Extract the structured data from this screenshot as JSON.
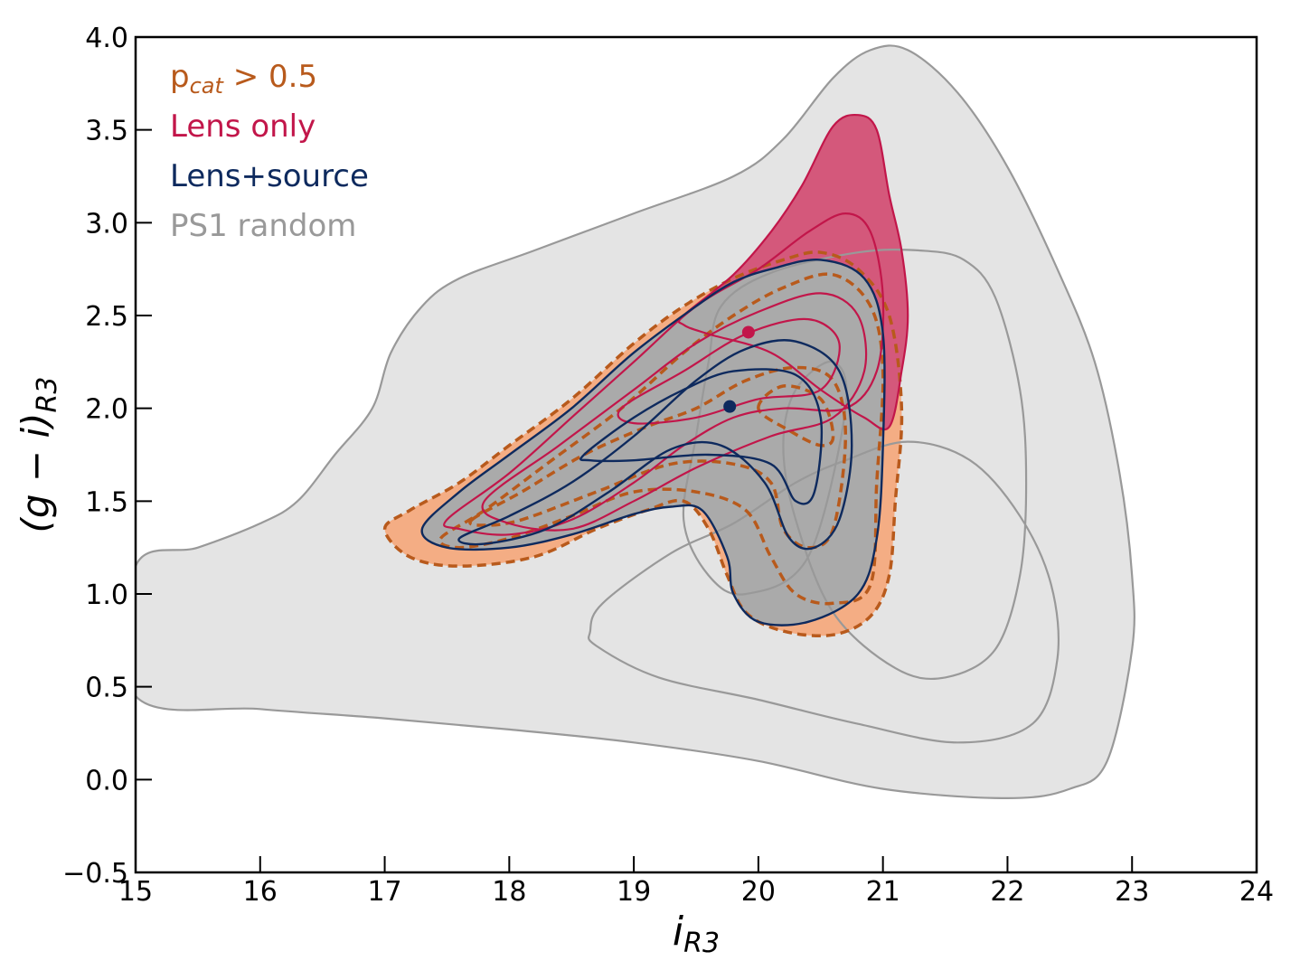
{
  "chart_data": {
    "type": "contour",
    "xlabel": "i",
    "xlabel_sub": "R3",
    "ylabel": "(g − i)",
    "ylabel_sub": "R3",
    "xlim": [
      15,
      24
    ],
    "ylim": [
      -0.5,
      4.0
    ],
    "xticks": [
      15,
      16,
      17,
      18,
      19,
      20,
      21,
      22,
      23,
      24
    ],
    "yticks": [
      -0.5,
      0.0,
      0.5,
      1.0,
      1.5,
      2.0,
      2.5,
      3.0,
      3.5,
      4.0
    ],
    "x_tick_labels": [
      "15",
      "16",
      "17",
      "18",
      "19",
      "20",
      "21",
      "22",
      "23",
      "24"
    ],
    "y_tick_labels": [
      "−0.5",
      "0.0",
      "0.5",
      "1.0",
      "1.5",
      "2.0",
      "2.5",
      "3.0",
      "3.5",
      "4.0"
    ],
    "legend": {
      "placement": "top-left",
      "entries": [
        {
          "key": "pcat",
          "text": "p",
          "sub": "cat",
          "suffix": " > 0.5",
          "color": "#b85a1c"
        },
        {
          "key": "lens",
          "text": "Lens only",
          "color": "#c2164a"
        },
        {
          "key": "lenssrc",
          "text": "Lens+source",
          "color": "#0e2a5e"
        },
        {
          "key": "ps1",
          "text": "PS1 random",
          "color": "#999999"
        }
      ]
    },
    "series": [
      {
        "key": "ps1",
        "color": "#999999",
        "fill": "#e4e4e4",
        "contours": [
          [
            [
              15.0,
              1.15
            ],
            [
              15.5,
              1.25
            ],
            [
              16.0,
              1.38
            ],
            [
              16.3,
              1.5
            ],
            [
              16.6,
              1.75
            ],
            [
              16.9,
              2.0
            ],
            [
              17.05,
              2.3
            ],
            [
              17.3,
              2.55
            ],
            [
              17.6,
              2.7
            ],
            [
              18.2,
              2.85
            ],
            [
              19.0,
              3.05
            ],
            [
              19.8,
              3.25
            ],
            [
              20.2,
              3.45
            ],
            [
              20.6,
              3.78
            ],
            [
              20.9,
              3.93
            ],
            [
              21.2,
              3.93
            ],
            [
              21.6,
              3.7
            ],
            [
              22.0,
              3.3
            ],
            [
              22.4,
              2.75
            ],
            [
              22.7,
              2.25
            ],
            [
              22.9,
              1.65
            ],
            [
              23.0,
              1.1
            ],
            [
              23.0,
              0.7
            ],
            [
              22.8,
              0.1
            ],
            [
              22.5,
              -0.05
            ],
            [
              22.0,
              -0.1
            ],
            [
              21.0,
              -0.05
            ],
            [
              20.0,
              0.1
            ],
            [
              19.0,
              0.2
            ],
            [
              18.0,
              0.27
            ],
            [
              17.0,
              0.33
            ],
            [
              16.0,
              0.38
            ],
            [
              15.0,
              0.45
            ]
          ],
          [
            [
              18.65,
              0.8
            ],
            [
              18.75,
              0.95
            ],
            [
              19.3,
              1.22
            ],
            [
              19.8,
              1.38
            ],
            [
              20.3,
              1.6
            ],
            [
              20.7,
              1.72
            ],
            [
              21.2,
              1.82
            ],
            [
              21.7,
              1.72
            ],
            [
              22.1,
              1.42
            ],
            [
              22.35,
              1.05
            ],
            [
              22.4,
              0.65
            ],
            [
              22.2,
              0.3
            ],
            [
              21.6,
              0.2
            ],
            [
              20.8,
              0.3
            ],
            [
              20.0,
              0.43
            ],
            [
              19.2,
              0.55
            ],
            [
              18.7,
              0.72
            ]
          ],
          [
            [
              19.4,
              1.4
            ],
            [
              19.5,
              1.85
            ],
            [
              19.6,
              2.25
            ],
            [
              19.7,
              2.55
            ],
            [
              20.1,
              2.73
            ],
            [
              20.8,
              2.84
            ],
            [
              21.3,
              2.85
            ],
            [
              21.65,
              2.8
            ],
            [
              21.9,
              2.6
            ],
            [
              22.1,
              2.1
            ],
            [
              22.15,
              1.6
            ],
            [
              22.1,
              1.1
            ],
            [
              21.9,
              0.7
            ],
            [
              21.5,
              0.55
            ],
            [
              21.1,
              0.6
            ],
            [
              20.6,
              0.9
            ],
            [
              20.3,
              1.4
            ],
            [
              20.2,
              1.8
            ],
            [
              20.3,
              2.1
            ],
            [
              20.6,
              2.25
            ],
            [
              20.7,
              2.0
            ],
            [
              20.4,
              1.2
            ],
            [
              19.9,
              1.0
            ],
            [
              19.6,
              1.1
            ]
          ]
        ]
      },
      {
        "key": "pcat",
        "color": "#b85a1c",
        "fill": "#f4ad84",
        "contours": [
          [
            [
              17.0,
              1.35
            ],
            [
              17.2,
              1.45
            ],
            [
              17.6,
              1.6
            ],
            [
              18.0,
              1.8
            ],
            [
              18.5,
              2.05
            ],
            [
              19.0,
              2.35
            ],
            [
              19.4,
              2.55
            ],
            [
              19.8,
              2.7
            ],
            [
              20.2,
              2.8
            ],
            [
              20.5,
              2.84
            ],
            [
              20.8,
              2.75
            ],
            [
              21.05,
              2.5
            ],
            [
              21.15,
              2.0
            ],
            [
              21.1,
              1.5
            ],
            [
              21.05,
              1.1
            ],
            [
              20.9,
              0.88
            ],
            [
              20.6,
              0.78
            ],
            [
              20.2,
              0.8
            ],
            [
              19.9,
              0.9
            ],
            [
              19.75,
              1.1
            ],
            [
              19.6,
              1.35
            ],
            [
              19.4,
              1.5
            ],
            [
              19.1,
              1.45
            ],
            [
              18.7,
              1.35
            ],
            [
              18.2,
              1.2
            ],
            [
              17.6,
              1.15
            ],
            [
              17.2,
              1.2
            ]
          ],
          [
            [
              17.45,
              1.3
            ],
            [
              17.8,
              1.45
            ],
            [
              18.3,
              1.7
            ],
            [
              18.9,
              2.0
            ],
            [
              19.4,
              2.3
            ],
            [
              19.8,
              2.5
            ],
            [
              20.2,
              2.65
            ],
            [
              20.6,
              2.72
            ],
            [
              20.9,
              2.55
            ],
            [
              21.0,
              2.2
            ],
            [
              20.95,
              1.6
            ],
            [
              20.9,
              1.05
            ],
            [
              20.6,
              0.95
            ],
            [
              20.3,
              1.0
            ],
            [
              20.1,
              1.2
            ],
            [
              19.9,
              1.45
            ],
            [
              19.5,
              1.55
            ],
            [
              19.0,
              1.55
            ],
            [
              18.5,
              1.42
            ],
            [
              18.0,
              1.3
            ],
            [
              17.6,
              1.25
            ]
          ],
          [
            [
              17.7,
              1.4
            ],
            [
              18.1,
              1.55
            ],
            [
              18.6,
              1.75
            ],
            [
              19.1,
              1.9
            ],
            [
              19.5,
              2.0
            ],
            [
              19.9,
              2.15
            ],
            [
              20.3,
              2.22
            ],
            [
              20.6,
              2.15
            ],
            [
              20.7,
              1.85
            ],
            [
              20.6,
              1.35
            ],
            [
              20.4,
              1.25
            ],
            [
              20.2,
              1.35
            ],
            [
              20.1,
              1.6
            ],
            [
              19.8,
              1.7
            ],
            [
              19.3,
              1.7
            ],
            [
              18.7,
              1.55
            ],
            [
              18.1,
              1.4
            ],
            [
              17.8,
              1.37
            ]
          ],
          [
            [
              20.0,
              2.0
            ],
            [
              20.2,
              2.12
            ],
            [
              20.5,
              2.05
            ],
            [
              20.6,
              1.85
            ],
            [
              20.5,
              1.8
            ],
            [
              20.25,
              1.88
            ]
          ]
        ]
      },
      {
        "key": "lens",
        "color": "#c2164a",
        "fill": "#d4587b",
        "contours": [
          [
            [
              19.4,
              2.5
            ],
            [
              19.8,
              2.72
            ],
            [
              20.1,
              2.95
            ],
            [
              20.35,
              3.2
            ],
            [
              20.6,
              3.52
            ],
            [
              20.8,
              3.58
            ],
            [
              20.95,
              3.5
            ],
            [
              21.05,
              3.15
            ],
            [
              21.15,
              2.85
            ],
            [
              21.2,
              2.5
            ],
            [
              21.15,
              2.2
            ],
            [
              21.05,
              1.9
            ],
            [
              20.85,
              1.95
            ],
            [
              20.5,
              2.1
            ],
            [
              20.1,
              2.3
            ],
            [
              19.6,
              2.4
            ],
            [
              19.4,
              2.45
            ]
          ],
          [
            [
              17.5,
              1.4
            ],
            [
              18.0,
              1.65
            ],
            [
              18.5,
              1.95
            ],
            [
              19.0,
              2.25
            ],
            [
              19.5,
              2.55
            ],
            [
              20.0,
              2.75
            ],
            [
              20.4,
              2.95
            ],
            [
              20.7,
              3.05
            ],
            [
              20.9,
              2.95
            ],
            [
              21.0,
              2.6
            ],
            [
              20.95,
              2.2
            ],
            [
              20.7,
              2.0
            ],
            [
              20.2,
              2.0
            ],
            [
              19.8,
              1.95
            ],
            [
              19.4,
              1.8
            ],
            [
              19.0,
              1.6
            ],
            [
              18.5,
              1.4
            ],
            [
              18.0,
              1.32
            ],
            [
              17.6,
              1.35
            ]
          ],
          [
            [
              17.8,
              1.5
            ],
            [
              18.4,
              1.8
            ],
            [
              19.0,
              2.1
            ],
            [
              19.5,
              2.35
            ],
            [
              20.0,
              2.52
            ],
            [
              20.5,
              2.62
            ],
            [
              20.8,
              2.5
            ],
            [
              20.85,
              2.2
            ],
            [
              20.6,
              1.95
            ],
            [
              20.1,
              1.85
            ],
            [
              19.5,
              1.68
            ],
            [
              19.0,
              1.5
            ],
            [
              18.5,
              1.35
            ],
            [
              18.0,
              1.38
            ]
          ],
          [
            [
              18.9,
              2.0
            ],
            [
              19.4,
              2.2
            ],
            [
              19.9,
              2.4
            ],
            [
              20.4,
              2.48
            ],
            [
              20.65,
              2.35
            ],
            [
              20.5,
              2.1
            ],
            [
              20.0,
              2.05
            ],
            [
              19.5,
              1.95
            ],
            [
              19.0,
              1.92
            ]
          ]
        ]
      },
      {
        "key": "lenssrc",
        "color": "#0e2a5e",
        "fill": "#aaaaaa",
        "contours": [
          [
            [
              17.3,
              1.35
            ],
            [
              17.6,
              1.55
            ],
            [
              18.0,
              1.75
            ],
            [
              18.5,
              2.0
            ],
            [
              19.0,
              2.3
            ],
            [
              19.5,
              2.55
            ],
            [
              19.8,
              2.68
            ],
            [
              20.1,
              2.75
            ],
            [
              20.5,
              2.8
            ],
            [
              20.85,
              2.7
            ],
            [
              21.0,
              2.4
            ],
            [
              21.0,
              1.8
            ],
            [
              20.95,
              1.3
            ],
            [
              20.8,
              1.0
            ],
            [
              20.4,
              0.85
            ],
            [
              20.0,
              0.85
            ],
            [
              19.8,
              1.0
            ],
            [
              19.75,
              1.2
            ],
            [
              19.55,
              1.45
            ],
            [
              19.3,
              1.47
            ],
            [
              19.0,
              1.43
            ],
            [
              18.5,
              1.32
            ],
            [
              18.0,
              1.25
            ],
            [
              17.5,
              1.25
            ]
          ],
          [
            [
              17.6,
              1.3
            ],
            [
              18.0,
              1.42
            ],
            [
              18.5,
              1.6
            ],
            [
              19.0,
              1.85
            ],
            [
              19.5,
              2.15
            ],
            [
              19.9,
              2.32
            ],
            [
              20.3,
              2.36
            ],
            [
              20.65,
              2.2
            ],
            [
              20.75,
              1.8
            ],
            [
              20.65,
              1.4
            ],
            [
              20.45,
              1.25
            ],
            [
              20.25,
              1.3
            ],
            [
              20.05,
              1.6
            ],
            [
              19.7,
              1.8
            ],
            [
              19.3,
              1.78
            ],
            [
              18.8,
              1.55
            ],
            [
              18.3,
              1.35
            ],
            [
              17.8,
              1.27
            ]
          ],
          [
            [
              18.6,
              1.75
            ],
            [
              19.0,
              1.95
            ],
            [
              19.4,
              2.1
            ],
            [
              19.8,
              2.2
            ],
            [
              20.3,
              2.18
            ],
            [
              20.5,
              1.95
            ],
            [
              20.45,
              1.55
            ],
            [
              20.3,
              1.5
            ],
            [
              20.1,
              1.7
            ],
            [
              19.6,
              1.75
            ],
            [
              19.0,
              1.72
            ],
            [
              18.65,
              1.72
            ]
          ]
        ]
      }
    ],
    "points": [
      {
        "key": "lens",
        "x": 19.92,
        "y": 2.41,
        "color": "#c2164a"
      },
      {
        "key": "lenssrc",
        "x": 19.77,
        "y": 2.01,
        "color": "#0e2a5e"
      }
    ]
  }
}
